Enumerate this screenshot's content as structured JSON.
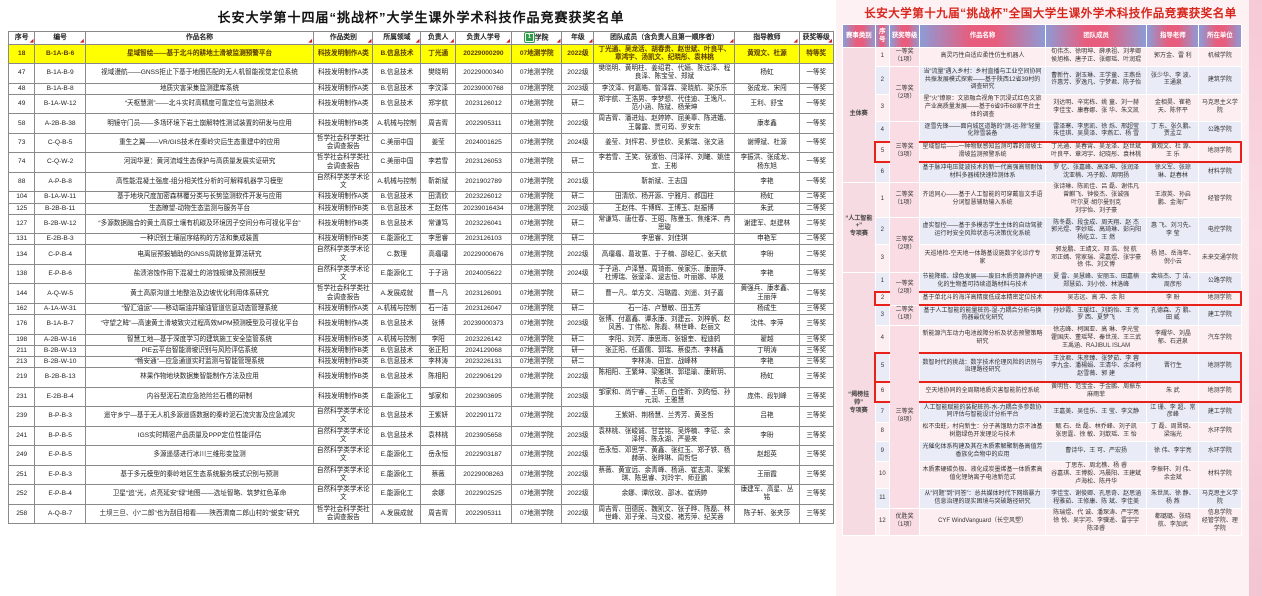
{
  "left_table": {
    "title": "长安大学第十四届“挑战杯”大学生课外学术科技作品竞赛获奖名单",
    "columns": [
      "序号",
      "编号",
      "作品名称",
      "作品类别",
      "所属领域",
      "负责人",
      "负责人学号",
      "学院",
      "年级",
      "团队成员（含负责人且第一顺序者）",
      "指导教师",
      "获奖等级"
    ],
    "col_widths": [
      "3.3%",
      "6.3%",
      "28.5%",
      "7.4%",
      "6.0%",
      "4.3%",
      "7.0%",
      "6.3%",
      "4.0%",
      "17.6%",
      "8.0%",
      "4.3%"
    ],
    "badge_column": 7,
    "badge_text": "1",
    "highlight_rows": [
      0
    ],
    "rows": [
      [
        "18",
        "B-1A-B-6",
        "星域智绘——基于北斗的耕地土滑坡监测预警平台",
        "科技发明制作A类",
        "B.信息技术",
        "丁光通",
        "20229000290",
        "07地测学院",
        "2022级",
        "丁光通、吴龙活、胡春贵、赵世斌、叶良平、章鸿宇、汤凯文、纪晓彤、袁林桃",
        "黄观文、杜源",
        "特等奖"
      ],
      [
        "47",
        "B-1A-B-9",
        "视域漫航——GNSS拒止下基于地图匹配的无人机智能视觉定位系统",
        "科技发明制作A类",
        "B.信息技术",
        "樊晓明",
        "20229000340",
        "07地测学院",
        "2022级",
        "樊晓明、黄明柱、姜绍君、代婳、陈远泽、程良泽、陈宝莹、郑斌",
        "杨虹",
        "一等奖"
      ],
      [
        "48",
        "B-1A-B-8",
        "地质灾害采集监测建库系统",
        "科技发明制作A类",
        "B.信息技术",
        "李汶泽",
        "20239000768",
        "07地测学院",
        "2023级",
        "李汶泽、何嘉皓、曾泽霖、梁晓航、梁乐乐",
        "张成龙、宋闯",
        "一等奖"
      ],
      [
        "49",
        "B-1A-W-12",
        "“天枢慧测”——北斗实时高精度可靠定位与监测技术",
        "科技发明制作A类",
        "B.信息技术",
        "郑宇航",
        "2023126012",
        "07地测学院",
        "研二",
        "郑宇航、王浩男、李梦想、代佳迪、王逸凡、范小涵、陈斌、杨荣坤",
        "王利、舒宝",
        "一等奖"
      ],
      [
        "58",
        "A-2B-B-38",
        "明镜守门员——多场环境下岩土崩解特性测试装置的研发与应用",
        "科技发明制作B类",
        "A.机械与控制",
        "周吉胥",
        "2022905311",
        "07地测学院",
        "2022级",
        "周吉胥、潘进灿、赵婷婷、屈美辜、陈进娥、王馨露、贾可筠、罗安东",
        "康孝鑫",
        "一等奖"
      ],
      [
        "73",
        "C-Q-B-5",
        "重生之翼——VR/GIS技术在秦岭灾后生态重建中的应用",
        "哲学社会科学类社会调查报告",
        "C.美丽中国",
        "姜莹",
        "2024001625",
        "07地测学院",
        "2024级",
        "姜莹、刘怦君、罗佳欣、吴紫瑞、张文涵",
        "谢博斌、杜源",
        "一等奖"
      ],
      [
        "74",
        "C-Q-W-2",
        "河润华夏：黄河流域生态保护与高质量发展实证研究",
        "哲学社会科学类社会调查报告",
        "C.美丽中国",
        "李若雪",
        "2023126053",
        "07地测学院",
        "研二",
        "李若雪、王笑、张淑怡、闫泽祥、刘曦、姚佳宜、王彬",
        "李振洪、张成龙、杨东旭",
        "一等奖"
      ],
      [
        "88",
        "A-P-B-8",
        "高性能混凝土强度-组分相关性分析的可解释机器学习模型",
        "自然科学类学术论文",
        "A.机械与控制",
        "靳新斌",
        "2021902789",
        "07地测学院",
        "2021级",
        "靳新斌、王志国",
        "李艳",
        "一等奖"
      ],
      [
        "104",
        "B-1A-W-11",
        "基于地块尺度加密森林覆分类与长势监测软件开发与应用",
        "科技发明制作A类",
        "B.信息技术",
        "田清欣",
        "2023226012",
        "07地测学院",
        "研二",
        "田清欣、杨开源、宁雅月、郝国柱",
        "杨虹",
        "二等奖"
      ],
      [
        "125",
        "B-2B-B-11",
        "生态瞭望-动物生态监测与服务平台",
        "科技发明制作B类",
        "B.信息技术",
        "王赵伟",
        "20239016434",
        "07地测学院",
        "2023级",
        "王赵伟、牛博辉、王博玉、赵振博",
        "朱武",
        "二等奖"
      ],
      [
        "127",
        "B-2B-W-12",
        "“多源数据融合的黄土高原土壤有机碳及环境因子空间分布可视化平台”",
        "科技发明制作B类",
        "B.信息技术",
        "常谦笃",
        "2023226041",
        "07地测学院",
        "研二",
        "常谦笃、唐仕春、王昭、陈曼玉、焦维洋、冉思璇",
        "谢建军、赵建林",
        "二等奖"
      ],
      [
        "131",
        "E-2B-B-3",
        "一种识别土壤层序结构的方法和集成装置",
        "科技发明制作B类",
        "E.能源化工",
        "李思睿",
        "2023126103",
        "07地测学院",
        "研二",
        "李思睿、刘佳琪",
        "申艳军",
        "二等奖"
      ],
      [
        "134",
        "C-P-B-4",
        "电离层预报辅助的GNSS周跳修复算法研究",
        "自然科学类学术论文",
        "C.数理",
        "高璢璢",
        "20229000676",
        "07地测学院",
        "2022级",
        "高璢璢、葛玫蕙、于子楠、邵经汇、张天航",
        "李昐",
        "二等奖"
      ],
      [
        "138",
        "E-P-B-6",
        "盐渍溶蚀作用下混凝土的溶蚀规律及预测模型",
        "自然科学类学术论文",
        "E.能源化工",
        "于子涵",
        "2024005622",
        "07地测学院",
        "2024级",
        "于子涵、卢泽慧、周琦雨、侯家乐、康丽萍、杜博瑞、张蓥泽、逯志恒、叶丽娜、毕晟",
        "李艳",
        "二等奖"
      ],
      [
        "144",
        "A-Q-W-5",
        "黄土高原沟道土地整治及边坡优化利用体系研究",
        "哲学社会科学类社会调查报告",
        "A.发展成就",
        "曹一凡",
        "2023126091",
        "07地测学院",
        "研二",
        "曹一凡、单方文、冯璐霞、刘遥、刘子嘉",
        "黄强兵、康孝鑫、王丽萍",
        "二等奖"
      ],
      [
        "162",
        "A-1A-W-31",
        "“智汇油运”——移动端油井输油管道信息动态管理系统",
        "科技发明制作A类",
        "A.机械与控制",
        "石一洁",
        "2023126047",
        "07地测学院",
        "研二",
        "石一洁、卢慧敏、田玉芳",
        "杨成生",
        "三等奖"
      ],
      [
        "176",
        "B-1A-B-7",
        "“守望之眸”—高速黄土滑坡致灾过程高效MPM预测模型及可视化平台",
        "科技发明制作A类",
        "B.信息技术",
        "张博",
        "20239000373",
        "07地测学院",
        "2023级",
        "张博、付嘉鑫、谭永康、刘建云、刘梓帆、赵风茜、丁伟松、陈磊、林世峰、赵丽文",
        "沈伟、李萍",
        "三等奖"
      ],
      [
        "198",
        "A-2B-W-16",
        "智慧工地—基于深度学习的建筑施工安全监管系统",
        "科技发明制作B类",
        "A.机械与控制",
        "李阳",
        "2023226142",
        "07地测学院",
        "研二",
        "李阳、刘芳、康思雨、张银奎、程迪鸫",
        "翟越",
        "三等奖"
      ],
      [
        "211",
        "B-2B-W-13",
        "PIE云平台智能滑坡识别与风险评估系统",
        "科技发明制作B类",
        "B.信息技术",
        "张正阳",
        "2024129068",
        "07地测学院",
        "研一",
        "张正阳、任嘉儒、郭瑞、蔡俊杰、李林鑫",
        "丁明涛",
        "三等奖"
      ],
      [
        "213",
        "B-2B-W-10",
        "“畅安通”—应急通道实时监测与智能管理系统",
        "科技发明制作B类",
        "B.信息技术",
        "李林涛",
        "2023226131",
        "07地测学院",
        "研二",
        "李林涛、田宜、战峰林",
        "李艳",
        "三等奖"
      ],
      [
        "219",
        "B-2B-B-13",
        "林果作物地块数据集智能制作方法及应用",
        "科技发明制作B类",
        "B.信息技术",
        "陈相阳",
        "2022906129",
        "07地测学院",
        "2022级",
        "陈相阳、王繁坤、梁雅琪、郭琨瑜、康昕玥、陈志莹",
        "杨虹",
        "三等奖"
      ],
      [
        "231",
        "E-2B-B-4",
        "内谷型泥石流应急抢险拦石槽的研制",
        "科技发明制作B类",
        "E.能源化工",
        "邹家和",
        "2023903695",
        "07地测学院",
        "2023级",
        "邹家和、尚宁睿、王昕、白佳昕、刘昀恒、孙元润、王雅慧",
        "庞伟、段钊峰",
        "三等奖"
      ],
      [
        "239",
        "B-P-B-3",
        "遥守乡宁—基于无人机多源遥感数据的秦岭泥石流灾害及应急减灾",
        "自然科学类学术论文",
        "B.信息技术",
        "王紫妍",
        "2022901172",
        "07地测学院",
        "2022级",
        "王紫妍、荆杨慧、兰秀芳、黄圣哲",
        "吕艳",
        "三等奖"
      ],
      [
        "241",
        "B-P-B-5",
        "IGS实时精密产品质量及PPP定位性能评估",
        "自然科学类学术论文",
        "B.信息技术",
        "袁林桃",
        "2023905658",
        "07地测学院",
        "2023级",
        "袁林桃、张峻诚、甘芸铭、吴烨楠、李征、余泽柯、陈永湖、严晏来",
        "李昐",
        "三等奖"
      ],
      [
        "249",
        "E-P-B-5",
        "多源遥感进行冰川三维形变监测",
        "自然科学类学术论文",
        "E.能源化工",
        "岳永恒",
        "2022903187",
        "07地测学院",
        "2022级",
        "岳永恒、邓思学、黄鑫、张红玉、郑子铁、杨赫萌、张晔琳、周哲恺",
        "赵超英",
        "三等奖"
      ],
      [
        "251",
        "E-P-B-3",
        "基于多元模型的秦岭地区生态系统服务模式识别与预测",
        "自然科学类学术论文",
        "E.能源化工",
        "蔡薇",
        "20229008263",
        "07地测学院",
        "2022级",
        "蔡薇、黄宣远、余青峰、杨涵、崔志肃、梁紫琪、陈思睿、刘玲宇、师亚鹏",
        "王丽霞",
        "三等奖"
      ],
      [
        "252",
        "E-P-B-4",
        "卫星“追”光，点亮延安“绿”地图——选址智略、筑梦红色革命",
        "自然科学类学术论文",
        "E.能源化工",
        "余娜",
        "2022902525",
        "07地测学院",
        "2022级",
        "余娜、谭欣玫、邵冰、崔炳婷",
        "康建军、高星、丛铭",
        "三等奖"
      ],
      [
        "258",
        "A-Q-B-7",
        "土坝三旦、小“二郎”也为刮目相看——陕西渭南二郎山村的“蜕变”研究",
        "哲学社会科学类社会调查报告",
        "A.发展成就",
        "周吉胥",
        "2022905311",
        "07地测学院",
        "2022级",
        "周吉胥、田德民、魏凯文、张子晔、陈磊、林世峰、邓子荣、马文俊、褚芳萍、纪芙蓉",
        "陈子轩、张夹莎",
        "三等奖"
      ]
    ]
  },
  "right_table": {
    "title": "长安大学第十九届“挑战杯”全国大学生课外学术科技作品竞赛获奖名单",
    "columns": [
      "赛事类别",
      "序号",
      "获奖等级",
      "作品名称",
      "团队成员",
      "指导老师",
      "所在单位"
    ],
    "col_widths": [
      "8.2%",
      "3.6%",
      "7.6%",
      "31.5%",
      "25.5%",
      "13.0%",
      "10.6%"
    ],
    "groups": [
      {
        "category": "主体赛",
        "rows": [
          {
            "no": "1",
            "award": "一等奖\n（1项）",
            "award_span": 1,
            "boxed": false,
            "title": "高灵巧性自适应柔性仿生机器人",
            "team": "旬伟杰、徐明坤、薛承祖、刘孝卿\n侯旭格、唐子正、张娜瑶、叶润琨",
            "advisors": "郭万金、雷  利",
            "unit": "机械学院"
          },
          {
            "no": "2",
            "award": "二等奖\n（2项）",
            "award_span": 2,
            "boxed": false,
            "title": "当“流量”遇入乡村：乡村直播与工业空间协同共振发展模式探索——基于陕西12省39村的调查研究",
            "team": "曹新竹、谢玉琳、王学童、王燕岳\n许惠芳、罗逸凡、宁梦君、陈子怡",
            "advisors": "张少华、李  波、王通泉",
            "unit": "建筑学院"
          },
          {
            "no": "3",
            "boxed": false,
            "title": "星“火”燎原：文旅融合视角下沉浸式红色文旅产业高质量发展——基于6省9市68家平台主体的调查",
            "team": "刘达明、辛宪栋、姚  童、刘一赫\n李佳宝、康春娜、张  华、朱文凯",
            "advisors": "金相昊、崔艳天、陈怀平",
            "unit": "马克思主义学院"
          },
          {
            "no": "4",
            "award": "三等奖\n（3项）",
            "award_span": 3,
            "boxed": false,
            "title": "逐雪先锋——面向城区道路的“测-运-除”轻量化除雪装备",
            "team": "雷泽寒、李思凯、徐  烁、邢超莹\n朱佳琪、吴昊泽、李燕汇、杨  雪",
            "advisors": "丁  东、张久鹏、贾孟立",
            "unit": "公路学院"
          },
          {
            "no": "5",
            "boxed": true,
            "title": "星域智绘——一种物联感知监测可靠的滑坡土滑坡监测预警系统",
            "team": "丁光通、吴春霄、吴龙泽、赵世斌\n叶良平、章鸿宇、纪晓彤、袁林桃",
            "advisors": "黄观文、杜  源、王  乐",
            "unit": "地测学院"
          },
          {
            "no": "6",
            "boxed": false,
            "title": "基于脉冲电压陡波技术的新一代高强高韧耐蚀材料多器械快速检测体系",
            "team": "罗  忆、张嘉峰、高泽坤、张润泽\n沈亚楠、冯子毅、周明扬",
            "advisors": "徐义军、张琼琳、赵春林",
            "unit": "材料学院"
          }
        ]
      },
      {
        "category": "“人工智能+”\n专项赛",
        "rows": [
          {
            "no": "1",
            "award": "二等奖\n（1项）",
            "award_span": 1,
            "boxed": false,
            "title": "齐追同心——基于人工智能的可穿戴盲文手语分词智慧辅助输入系统",
            "team": "张诗琳、陈凯佳、吕  磊、谢伟凡\n曾麒飞、钟俊杰、张诚强\n叶尔夏·胡尔曼别克\n刘宇怡、刘子豪",
            "advisors": "王淑英、孙启鹏、金海广",
            "unit": "经管学院"
          },
          {
            "no": "2",
            "award": "三等奖\n（2项）",
            "award_span": 2,
            "boxed": false,
            "title": "虚实智控——基于多模态学生主体的自动驾驶运行时安全风险状态与决策优化系统",
            "team": "陈冬磊、段金成、周天翔、赵  杰\n郭光煜、李妙瑶、高琦琳、彭向阳\n杨屹立、王  燃",
            "advisors": "惠  飞、刘习先、李  莹",
            "unit": "电控学院"
          },
          {
            "no": "3",
            "boxed": false,
            "title": "天巡地检-空天地一体路基设施数字化诊疗专家",
            "team": "郭龙鹏、王靖文、邓  浩、倪  航\n邓正嫣、常家瑞、梁嘉煜、张宇豪\n徐  伟、刘文博",
            "advisors": "杨  旭、岳海年、倪小云",
            "unit": "未来交通学院"
          }
        ]
      },
      {
        "category": "“揭榜挂帅”\n专项赛",
        "rows": [
          {
            "no": "1",
            "award": "一等奖\n（2项）",
            "award_span": 2,
            "boxed": false,
            "title": "节能降碳、绿色发展——废旧木质资源养护退化的生物基可持续道路材料与技术",
            "team": "夏  雷、吴慧峰、安丽玉、田嘉楠\n郑慧茹、刘小悦、林洛峰",
            "advisors": "裴培杰、丁  洁、周彦彤",
            "unit": "公路学院"
          },
          {
            "no": "2",
            "boxed": true,
            "title": "基于单北斗的海洋高精度低成本精密定位技术",
            "team": "吴志远、高  冲、余  阳",
            "advisors": "李  昐",
            "unit": "地测学院"
          },
          {
            "no": "3",
            "award": "二等奖\n（1项）",
            "award_span": 1,
            "boxed": false,
            "title": "基于人工智能的能量桩热-湿-力耦合分析与换热器最优化研究",
            "team": "孙妙霞、王瑗红、刘韵怡、王  亮\n罗  西、夏梦飞",
            "advisors": "孔德森、方  鹏、田  威",
            "unit": "建工学院"
          },
          {
            "no": "4",
            "award": "三等奖\n（8项）",
            "award_span": 8,
            "boxed": false,
            "title": "新能源汽车动力电池故障分析及状态预警策略研究",
            "team": "徐志峰、柯国亚、高  琳、李光莹\n霍国庆、董瑶琴、秦世茂、王三武\n王禹涵、RAJIBUL ISLAM",
            "advisors": "李耀华、刘晶郁、石进泉",
            "unit": "汽车学院"
          },
          {
            "no": "5",
            "boxed": true,
            "title": "数智时代的挑战：数字技术伦理风险的识别与治理路径研究",
            "team": "王汶君、朱彦臻、张梦茹、李  蓉\n李九金、潘楊娟、王清华、余泽柯\n赵雪薇、郭  建",
            "advisors": "晋行生",
            "unit": "地测学院"
          },
          {
            "no": "6",
            "boxed": true,
            "title": "空天地协同的全周期地质灾害智能防控系统",
            "team": "黄明哲、范宝金、于金鹏、周振东\n麻雨菲",
            "advisors": "朱  武",
            "unit": "地测学院"
          },
          {
            "no": "7",
            "boxed": false,
            "title": "人工智能赋能的装配桩热-水-力耦合多参数协同评估与智能设计分析平台",
            "team": "王嘉美、吴佳乐、王  莹、李文静",
            "advisors": "江  珊、李  超、常彦峰",
            "unit": "建工学院"
          },
          {
            "no": "8",
            "boxed": false,
            "title": "松不虫蛀，村向新生：分子蒸馏助力京不油基树脂绿色开发理论与技术",
            "team": "甄  石、岳  磊、林乔峰、刘子凯\n张思霆、徐  敏、刘歆瑶、王  怡",
            "advisors": "丁  磊、周晋晓、梁瑞光",
            "unit": "水环学院"
          },
          {
            "no": "9",
            "boxed": false,
            "title": "光催化体系构建及其在木质素解聚制备高值芳香族化合物中的应用",
            "team": "曹诗华、王  可、严宏扬",
            "advisors": "徐  伟、李宇亮",
            "unit": "水环学院"
          },
          {
            "no": "10",
            "boxed": false,
            "title": "木质素硬碳负极、液化成炭墨烯基一体质素高值化锂钠离子电池新范式",
            "team": "丁思东、周北樵、杨  睿\n谷嘉琪、王博毅、冯晨阳、王建斌\n卢海松、陈丹华",
            "advisors": "李振轩、刘  伟、余金斌",
            "unit": "材料学院"
          },
          {
            "no": "11",
            "boxed": false,
            "title": "从“问题”到“问答”：总共媒体时代下网络暴力信息治理的现实困境与突破路径研究",
            "team": "李佳宝、谢俊卿、孔思奇、赵思涵\n程雅茹、王修康、陈  斌、李佳美",
            "advisors": "朱世凤、徐  静、杨  燕",
            "unit": "马克思主义学院"
          },
          {
            "no": "12",
            "award": "优胜奖\n（1项）",
            "award_span": 1,
            "boxed": false,
            "title": "CYF WindVanguard（长空风塑）",
            "team": "陈瑞煜、代  诚、潘琛涛、严宇亮\n徐  悦、吴宇河、李骥遥、雷宇宇\n陈泽睿",
            "advisors": "都璐璐、张晓航、李加武",
            "unit": "信息学院\n经管学院、理学院"
          }
        ]
      }
    ]
  }
}
